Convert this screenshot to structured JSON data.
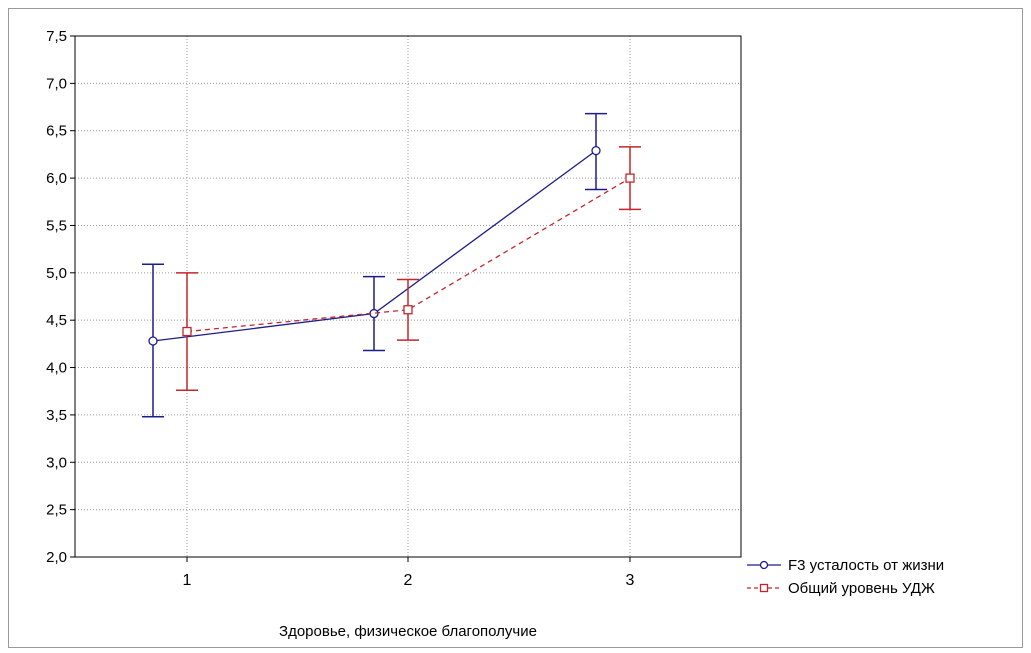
{
  "chart_data": {
    "type": "line",
    "xlabel": "Здоровье, физическое благополучие",
    "ylabel": "",
    "categories": [
      "1",
      "2",
      "3"
    ],
    "ylim": [
      2.0,
      7.5
    ],
    "y_ticks": [
      "2,0",
      "2,5",
      "3,0",
      "3,5",
      "4,0",
      "4,5",
      "5,0",
      "5,5",
      "6,0",
      "6,5",
      "7,0",
      "7,5"
    ],
    "grid": true,
    "error_bars": true,
    "legend_position": "bottom-right",
    "series": [
      {
        "name": "F3 усталость от жизни",
        "color": "#1c1c8c",
        "marker": "circle",
        "line_style": "solid",
        "values": [
          4.28,
          4.57,
          6.29
        ],
        "lower": [
          3.48,
          4.18,
          5.88
        ],
        "upper": [
          5.09,
          4.96,
          6.68
        ]
      },
      {
        "name": "Общий уровень УДЖ",
        "color": "#c4262b",
        "marker": "square",
        "line_style": "dashed",
        "values": [
          4.38,
          4.61,
          6.0
        ],
        "lower": [
          3.76,
          4.29,
          5.67
        ],
        "upper": [
          5.0,
          4.93,
          6.33
        ]
      }
    ]
  }
}
